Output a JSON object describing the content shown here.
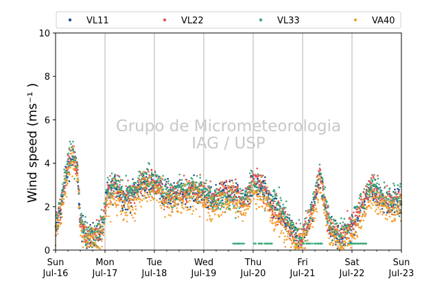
{
  "chart_data": {
    "type": "scatter",
    "ylabel": "Wind speed (ms⁻¹ )",
    "xlabel": "",
    "ylim": [
      0,
      10
    ],
    "y_ticks": [
      "0",
      "2",
      "4",
      "6",
      "8",
      "10"
    ],
    "x_ticks": [
      {
        "day": "Sun",
        "date": "Jul-16"
      },
      {
        "day": "Mon",
        "date": "Jul-17"
      },
      {
        "day": "Tue",
        "date": "Jul-18"
      },
      {
        "day": "Wed",
        "date": "Jul-19"
      },
      {
        "day": "Thu",
        "date": "Jul-20"
      },
      {
        "day": "Fri",
        "date": "Jul-21"
      },
      {
        "day": "Sat",
        "date": "Jul-22"
      },
      {
        "day": "Sun",
        "date": "Jul-23"
      }
    ],
    "x_range_days": [
      0,
      7
    ],
    "grid": "vertical lines at each day",
    "legend_position": "top",
    "watermark": [
      "Grupo de Micrometeorologia",
      "IAG / USP"
    ],
    "series": [
      {
        "name": "VL11",
        "color": "#1f4e8c",
        "profile": [
          [
            0,
            0.8
          ],
          [
            0.15,
            2.5
          ],
          [
            0.25,
            3.8
          ],
          [
            0.35,
            4.3
          ],
          [
            0.45,
            3.6
          ],
          [
            0.5,
            1.2
          ],
          [
            0.6,
            0.7
          ],
          [
            0.8,
            0.6
          ],
          [
            0.95,
            1.0
          ],
          [
            1.05,
            2.6
          ],
          [
            1.25,
            3.0
          ],
          [
            1.4,
            2.3
          ],
          [
            1.6,
            2.6
          ],
          [
            1.8,
            3.1
          ],
          [
            2.0,
            3.0
          ],
          [
            2.2,
            2.6
          ],
          [
            2.4,
            2.5
          ],
          [
            2.6,
            2.7
          ],
          [
            2.8,
            2.7
          ],
          [
            3.0,
            2.5
          ],
          [
            3.2,
            2.2
          ],
          [
            3.4,
            2.8
          ],
          [
            3.6,
            2.6
          ],
          [
            3.8,
            2.1
          ],
          [
            4.0,
            3.0
          ],
          [
            4.2,
            2.8
          ],
          [
            4.4,
            2.0
          ],
          [
            4.6,
            1.4
          ],
          [
            4.7,
            1.1
          ],
          [
            4.85,
            0.6
          ],
          [
            5.0,
            0.5
          ],
          [
            5.2,
            1.8
          ],
          [
            5.35,
            3.5
          ],
          [
            5.45,
            2.2
          ],
          [
            5.55,
            1.0
          ],
          [
            5.75,
            0.5
          ],
          [
            6.0,
            1.0
          ],
          [
            6.2,
            2.0
          ],
          [
            6.4,
            2.8
          ],
          [
            6.6,
            2.4
          ],
          [
            6.8,
            2.1
          ],
          [
            7.0,
            2.2
          ]
        ]
      },
      {
        "name": "VL22",
        "color": "#e05550",
        "profile": [
          [
            0,
            0.9
          ],
          [
            0.15,
            2.6
          ],
          [
            0.25,
            3.9
          ],
          [
            0.35,
            4.4
          ],
          [
            0.45,
            3.7
          ],
          [
            0.5,
            1.3
          ],
          [
            0.6,
            0.8
          ],
          [
            0.8,
            0.6
          ],
          [
            0.95,
            1.1
          ],
          [
            1.05,
            2.7
          ],
          [
            1.25,
            3.0
          ],
          [
            1.4,
            2.4
          ],
          [
            1.6,
            2.7
          ],
          [
            1.8,
            3.3
          ],
          [
            2.0,
            3.1
          ],
          [
            2.2,
            2.6
          ],
          [
            2.4,
            2.5
          ],
          [
            2.6,
            2.8
          ],
          [
            2.8,
            2.8
          ],
          [
            3.0,
            2.6
          ],
          [
            3.2,
            2.3
          ],
          [
            3.4,
            2.9
          ],
          [
            3.6,
            2.7
          ],
          [
            3.8,
            2.2
          ],
          [
            4.0,
            3.3
          ],
          [
            4.2,
            2.9
          ],
          [
            4.4,
            2.1
          ],
          [
            4.6,
            1.5
          ],
          [
            4.7,
            1.2
          ],
          [
            4.85,
            0.7
          ],
          [
            5.0,
            0.6
          ],
          [
            5.2,
            1.9
          ],
          [
            5.35,
            3.6
          ],
          [
            5.45,
            2.3
          ],
          [
            5.55,
            1.1
          ],
          [
            5.75,
            0.6
          ],
          [
            6.0,
            1.1
          ],
          [
            6.2,
            2.1
          ],
          [
            6.4,
            2.9
          ],
          [
            6.6,
            2.5
          ],
          [
            6.8,
            2.2
          ],
          [
            7.0,
            2.3
          ]
        ]
      },
      {
        "name": "VL33",
        "color": "#3aa87a",
        "profile": [
          [
            0,
            1.0
          ],
          [
            0.15,
            2.8
          ],
          [
            0.25,
            4.1
          ],
          [
            0.35,
            4.5
          ],
          [
            0.45,
            3.8
          ],
          [
            0.5,
            1.4
          ],
          [
            0.6,
            0.9
          ],
          [
            0.8,
            0.7
          ],
          [
            0.95,
            1.2
          ],
          [
            1.05,
            2.8
          ],
          [
            1.25,
            3.1
          ],
          [
            1.4,
            2.5
          ],
          [
            1.6,
            2.8
          ],
          [
            1.8,
            3.4
          ],
          [
            2.0,
            3.2
          ],
          [
            2.2,
            2.7
          ],
          [
            2.4,
            2.6
          ],
          [
            2.6,
            2.9
          ],
          [
            2.8,
            2.9
          ],
          [
            3.0,
            2.7
          ],
          [
            3.2,
            2.4
          ],
          [
            3.4,
            2.4
          ],
          [
            3.6,
            2.3
          ],
          [
            3.8,
            2.3
          ],
          [
            4.0,
            3.1
          ],
          [
            4.2,
            2.6
          ],
          [
            4.4,
            2.5
          ],
          [
            4.6,
            1.8
          ],
          [
            4.7,
            1.4
          ],
          [
            4.85,
            0.8
          ],
          [
            5.0,
            0.7
          ],
          [
            5.2,
            2.1
          ],
          [
            5.35,
            3.8
          ],
          [
            5.45,
            2.4
          ],
          [
            5.55,
            1.2
          ],
          [
            5.75,
            0.7
          ],
          [
            6.0,
            1.2
          ],
          [
            6.2,
            2.2
          ],
          [
            6.4,
            3.0
          ],
          [
            6.6,
            2.6
          ],
          [
            6.8,
            2.3
          ],
          [
            7.0,
            2.4
          ]
        ]
      },
      {
        "name": "VA40",
        "color": "#f5a030",
        "profile": [
          [
            0,
            0.6
          ],
          [
            0.15,
            2.2
          ],
          [
            0.25,
            3.6
          ],
          [
            0.35,
            4.2
          ],
          [
            0.45,
            3.3
          ],
          [
            0.5,
            1.0
          ],
          [
            0.6,
            0.5
          ],
          [
            0.8,
            0.4
          ],
          [
            0.95,
            0.7
          ],
          [
            1.05,
            2.2
          ],
          [
            1.25,
            2.4
          ],
          [
            1.4,
            1.8
          ],
          [
            1.6,
            2.2
          ],
          [
            1.8,
            2.9
          ],
          [
            2.0,
            2.8
          ],
          [
            2.2,
            2.3
          ],
          [
            2.4,
            2.2
          ],
          [
            2.6,
            2.4
          ],
          [
            2.8,
            2.4
          ],
          [
            3.0,
            2.2
          ],
          [
            3.2,
            1.9
          ],
          [
            3.4,
            2.5
          ],
          [
            3.6,
            2.3
          ],
          [
            3.8,
            1.8
          ],
          [
            4.0,
            2.7
          ],
          [
            4.2,
            2.4
          ],
          [
            4.4,
            1.6
          ],
          [
            4.6,
            1.0
          ],
          [
            4.7,
            0.8
          ],
          [
            4.85,
            0.4
          ],
          [
            5.0,
            0.3
          ],
          [
            5.2,
            1.5
          ],
          [
            5.35,
            3.1
          ],
          [
            5.45,
            1.8
          ],
          [
            5.55,
            0.7
          ],
          [
            5.75,
            0.3
          ],
          [
            6.0,
            0.7
          ],
          [
            6.2,
            1.6
          ],
          [
            6.4,
            2.5
          ],
          [
            6.6,
            2.1
          ],
          [
            6.8,
            1.8
          ],
          [
            7.0,
            1.9
          ]
        ]
      }
    ]
  }
}
